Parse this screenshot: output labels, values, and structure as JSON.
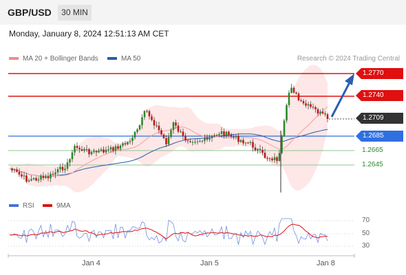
{
  "header": {
    "pair": "GBP/USD",
    "timeframe": "30 MIN"
  },
  "datetime": "Monday, January 8, 2024 12:51:13 AM CET",
  "legend": [
    {
      "label": "MA 20 + Bollinger Bands",
      "color": "#f08a8a"
    },
    {
      "label": "MA 50",
      "color": "#2e5aa8"
    }
  ],
  "research": "Research © 2024 Trading Central",
  "levels": {
    "r2": "1.2770",
    "r1": "1.2740",
    "current": "1.2709",
    "pivot": "1.2685",
    "s1": "1.2665",
    "s2": "1.2645"
  },
  "rsi": {
    "legend": [
      {
        "label": "RSI",
        "color": "#4a72d8"
      },
      {
        "label": "9MA",
        "color": "#e01010"
      }
    ],
    "levels": [
      "70",
      "50",
      "30"
    ]
  },
  "xaxis": [
    "Jan 4",
    "Jan 5",
    "Jan 8"
  ],
  "colors": {
    "resistance": "#e01010",
    "pivot": "#2f6fe0",
    "support": "#2a8a2a",
    "candle_up": "#2a8a2a",
    "candle_down": "#c21818"
  }
}
